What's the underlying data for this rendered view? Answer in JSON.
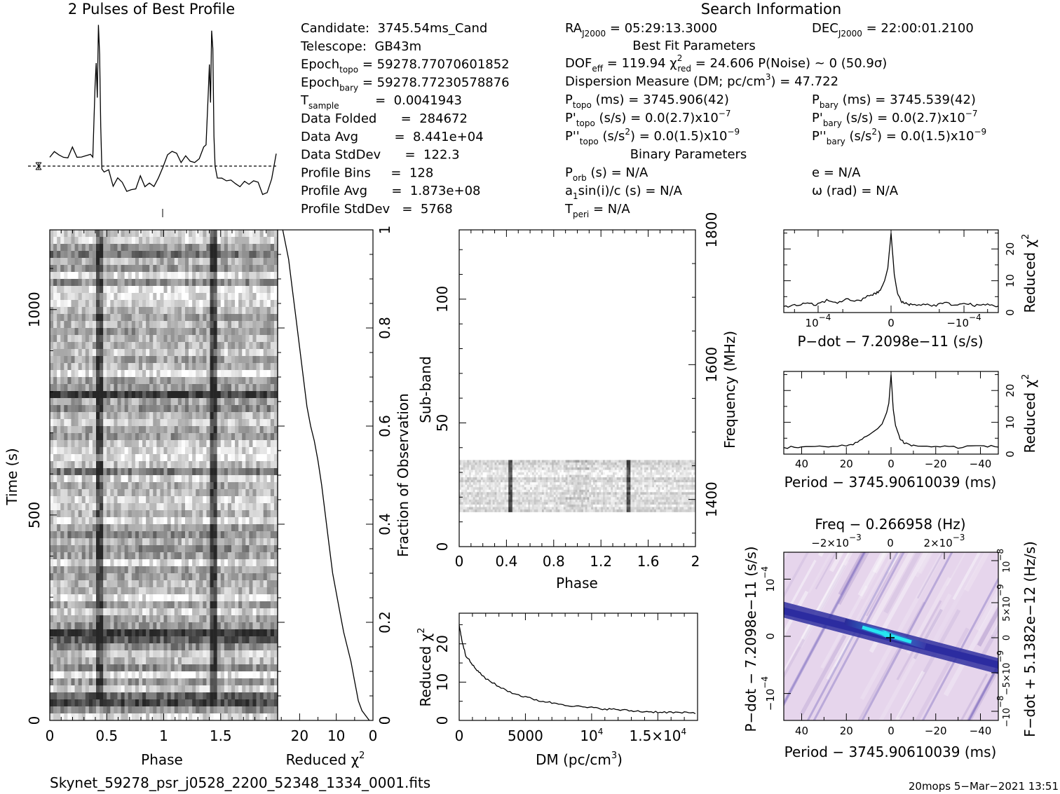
{
  "title_profile": "2 Pulses of Best Profile",
  "title_search": "Search Information",
  "info": {
    "left": [
      [
        "Candidate:  3745.54ms_Cand",
        ""
      ],
      [
        "Telescope:  GB43m",
        ""
      ],
      [
        "Epoch",
        "topo",
        " = 59278.77070601852"
      ],
      [
        "Epoch",
        "bary",
        " = 59278.77230578876"
      ],
      [
        "T",
        "sample",
        "         =  0.0041943"
      ],
      [
        "Data Folded      =  284672",
        "",
        ""
      ],
      [
        "Data Avg         =  8.441e+04",
        "",
        ""
      ],
      [
        "Data StdDev      =  122.3",
        "",
        ""
      ],
      [
        "Profile Bins     =  128",
        "",
        ""
      ],
      [
        "Profile Avg      =  1.873e+08",
        "",
        ""
      ],
      [
        "Profile StdDev   =  5768",
        "",
        ""
      ]
    ],
    "ra": "RA",
    "ra_sub": "J2000",
    "ra_val": " = 05:29:13.3000",
    "dec": "DEC",
    "dec_sub": "J2000",
    "dec_val": " = 22:00:01.2100",
    "best_fit": "Best Fit Parameters",
    "dof": "DOF",
    "dof_sub": "eff",
    "dof_val": " = 119.94  ",
    "chi": "χ",
    "chi_sup": "2",
    "chi_sub": "red",
    "chi_val": " = 24.606  P(Noise) ~ 0   (50.9σ)",
    "dm_line": "Dispersion Measure (DM; pc/cm",
    "dm_sup": "3",
    "dm_val": ") = 47.722",
    "ptopo": "P",
    "ptopo_sub": "topo",
    "ptopo_val": " (ms) =  3745.906(42)",
    "pbary": "P",
    "pbary_sub": "bary",
    "pbary_val": " (ms) =  3745.539(42)",
    "pdtopo": "P'",
    "pdtopo_sub": "topo",
    "pdtopo_val": " (s/s) = 0.0(2.7)x10",
    "pdtopo_exp": "−7",
    "pdbary": "P'",
    "pdbary_sub": "bary",
    "pdbary_val": " (s/s) = 0.0(2.7)x10",
    "pdbary_exp": "−7",
    "pddtopo": "P''",
    "pddtopo_sub": "topo",
    "pddtopo_val": " (s/s",
    "pddtopo_sup": "2",
    "pddtopo_val2": ") = 0.0(1.5)x10",
    "pddtopo_exp": "−9",
    "pddbary": "P''",
    "pddbary_sub": "bary",
    "pddbary_val": " (s/s",
    "pddbary_sup": "2",
    "pddbary_val2": ") = 0.0(1.5)x10",
    "pddbary_exp": "−9",
    "binary": "Binary Parameters",
    "porb": "P",
    "porb_sub": "orb",
    "porb_val": " (s) = N/A",
    "e_val": "e = N/A",
    "a1_pre": "a",
    "a1_sub": "1",
    "a1_val": "sin(i)/c (s) = N/A",
    "omega_val": "ω (rad) = N/A",
    "tperi": "T",
    "tperi_sub": "peri",
    "tperi_val": " = N/A"
  },
  "footer": {
    "filename": "Skynet_59278_psr_j0528_2200_52348_1334_0001.fits",
    "stamp": "20mops  5−Mar−2021 13:51"
  },
  "chart_data": [
    {
      "name": "profile",
      "type": "line",
      "title": "2 Pulses of Best Profile",
      "x": [
        0,
        0.04,
        0.08,
        0.12,
        0.16,
        0.2,
        0.24,
        0.28,
        0.32,
        0.36,
        0.38,
        0.4,
        0.41,
        0.42,
        0.43,
        0.44,
        0.45,
        0.46,
        0.48,
        0.52,
        0.56,
        0.6,
        0.64,
        0.68,
        0.72,
        0.76,
        0.8,
        0.84,
        0.88,
        0.92,
        0.96,
        1.0,
        1.04,
        1.08,
        1.12,
        1.16,
        1.2,
        1.24,
        1.28,
        1.32,
        1.36,
        1.38,
        1.4,
        1.41,
        1.42,
        1.43,
        1.44,
        1.45,
        1.46,
        1.48,
        1.52,
        1.56,
        1.6,
        1.64,
        1.68,
        1.72,
        1.76,
        1.8,
        1.84,
        1.88,
        1.92,
        1.96,
        2.0
      ],
      "y": [
        0.3,
        0.4,
        0.5,
        0.3,
        0.2,
        0.35,
        0.3,
        0.2,
        0.25,
        0.4,
        0.5,
        2.5,
        3.5,
        2.2,
        4.6,
        3.8,
        1.2,
        0.0,
        -0.2,
        -0.3,
        -0.5,
        -0.4,
        -0.6,
        -0.7,
        -0.8,
        -0.6,
        -0.5,
        -0.7,
        -0.8,
        -0.9,
        -0.4,
        0.2,
        0.4,
        0.5,
        0.3,
        0.2,
        0.35,
        0.3,
        0.2,
        0.25,
        0.4,
        0.5,
        2.5,
        3.5,
        2.2,
        4.6,
        3.8,
        1.2,
        0.0,
        -0.2,
        -0.3,
        -0.5,
        -0.4,
        -0.6,
        -0.7,
        -0.8,
        -0.6,
        -0.5,
        -0.7,
        -0.8,
        -0.9,
        -0.4,
        0.2
      ]
    },
    {
      "name": "time-phase",
      "type": "heatmap",
      "xlabel": "Phase",
      "ylabel": "Time (s)",
      "xticks": [
        "0",
        "0.5",
        "1",
        "1.5"
      ],
      "yticks": [
        "0",
        "500",
        "1000"
      ],
      "xlim": [
        0,
        2
      ],
      "ylim": [
        0,
        1194
      ],
      "pulse_phases": [
        0.43,
        1.43
      ],
      "dark_rows_s": [
        50,
        200,
        210,
        600,
        800,
        1140
      ]
    },
    {
      "name": "time-chi2",
      "type": "line",
      "xlabel": "Reduced χ",
      "xlabel_sup": "2",
      "ylabel": "Fraction of Observation",
      "xticks": [
        "20",
        "10",
        "0"
      ],
      "yticks": [
        "0",
        "0.2",
        "0.4",
        "0.6",
        "0.8",
        "1"
      ],
      "x": [
        1,
        2,
        3,
        4,
        4.5,
        5,
        6,
        7,
        8,
        9,
        10,
        11,
        12,
        13,
        14,
        15,
        16,
        17,
        18,
        19,
        20,
        21,
        22,
        23,
        24.6
      ],
      "y": [
        0,
        0.01,
        0.02,
        0.04,
        0.06,
        0.08,
        0.12,
        0.15,
        0.18,
        0.22,
        0.26,
        0.3,
        0.36,
        0.42,
        0.48,
        0.53,
        0.57,
        0.6,
        0.64,
        0.7,
        0.76,
        0.82,
        0.88,
        0.94,
        1.0
      ]
    },
    {
      "name": "subband-phase",
      "type": "heatmap",
      "xlabel": "Phase",
      "ylabel": "Sub-band",
      "y2label": "Frequency (MHz)",
      "xticks": [
        "0",
        "0.4",
        "0.8",
        "1.2",
        "1.6",
        "2"
      ],
      "yticks": [
        "0",
        "50",
        "100"
      ],
      "y2ticks": [
        "1400",
        "1600",
        "1800"
      ],
      "xlim": [
        0,
        2
      ],
      "ylim": [
        0,
        128
      ],
      "active_subbands": [
        14,
        35
      ],
      "pulse_phases": [
        0.43,
        1.43
      ]
    },
    {
      "name": "dm-chi2",
      "type": "line",
      "xlabel": "DM (pc/cm",
      "xlabel_sup": "3",
      "xlabel_end": ")",
      "ylabel": "Reduced χ",
      "ylabel_sup": "2",
      "xticks": [
        "0",
        "5000",
        "10",
        "1.5×10"
      ],
      "xtick_exp": [
        "",
        "",
        "4",
        "4"
      ],
      "yticks": [
        "0",
        "10",
        "20"
      ],
      "xlim": [
        0,
        18000
      ],
      "ylim": [
        0,
        28
      ],
      "x": [
        0,
        200,
        500,
        1000,
        1500,
        2000,
        3000,
        4000,
        5000,
        6000,
        7000,
        8000,
        9000,
        10000,
        11000,
        12000,
        13000,
        14000,
        15000,
        16000,
        17000,
        18000
      ],
      "y": [
        25,
        21,
        17,
        14.5,
        12.5,
        11,
        8.8,
        7.2,
        6.1,
        5.2,
        4.6,
        4.1,
        3.6,
        3.3,
        3.0,
        2.8,
        2.5,
        2.3,
        2.2,
        2.1,
        2.0,
        1.9
      ]
    },
    {
      "name": "pdot-chi2",
      "type": "line",
      "xlabel": "P−dot − 7.2098e−11 (s/s)",
      "ylabel": "Reduced χ",
      "ylabel_sup": "2",
      "xticks": [
        "10",
        "0",
        "−10"
      ],
      "xtick_exp": [
        "−4",
        "",
        "−4"
      ],
      "yticks": [
        "0",
        "10",
        "20"
      ],
      "xlim": [
        -1,
        1
      ],
      "ylim": [
        0,
        26
      ],
      "x": [
        -1,
        -0.9,
        -0.8,
        -0.7,
        -0.6,
        -0.5,
        -0.4,
        -0.3,
        -0.2,
        -0.15,
        -0.1,
        -0.06,
        -0.03,
        0,
        0.03,
        0.06,
        0.1,
        0.15,
        0.2,
        0.3,
        0.4,
        0.5,
        0.6,
        0.7,
        0.8,
        0.9,
        1
      ],
      "y": [
        2,
        2.2,
        2.8,
        2.4,
        3.8,
        3.2,
        4.2,
        3.5,
        5.5,
        5.8,
        7,
        10,
        14,
        25,
        12,
        6,
        3.2,
        2.8,
        2.4,
        2.6,
        2.2,
        3,
        2.4,
        2.8,
        2.2,
        2.5,
        2
      ]
    },
    {
      "name": "period-chi2",
      "type": "line",
      "xlabel": "Period − 3745.90610039 (ms)",
      "ylabel": "Reduced χ",
      "ylabel_sup": "2",
      "xticks": [
        "40",
        "20",
        "0",
        "−20",
        "−40"
      ],
      "yticks": [
        "0",
        "10",
        "20"
      ],
      "xlim": [
        48,
        -48
      ],
      "ylim": [
        0,
        26
      ],
      "x": [
        48,
        40,
        30,
        20,
        15,
        10,
        6,
        4,
        2,
        1,
        0,
        -1,
        -2,
        -4,
        -6,
        -10,
        -20,
        -30,
        -40,
        -48
      ],
      "y": [
        2,
        2.4,
        2.2,
        2.6,
        3.8,
        6,
        8,
        9.5,
        13,
        16,
        25,
        14,
        9,
        5,
        3.5,
        2.6,
        2.4,
        2.2,
        2.6,
        2.2
      ]
    },
    {
      "name": "p-pdot",
      "type": "heatmap",
      "title": "Freq − 0.266958 (Hz)",
      "xlabel": "Period − 3745.90610039 (ms)",
      "ylabel": "P−dot − 7.2098e−11 (s/s)",
      "y2label": "F−dot + 5.1382e−12 (Hz/s)",
      "xticks": [
        "40",
        "20",
        "0",
        "−20",
        "−40"
      ],
      "x2ticks": [
        "−2×10",
        "0",
        "2×10"
      ],
      "x2tick_exp": [
        "−3",
        "",
        "−3"
      ],
      "yticks": [
        "10",
        "0",
        "−10"
      ],
      "ytick_exp": [
        "−4",
        "",
        "−4"
      ],
      "y2ticks": [
        "−10",
        "−5×10",
        "0",
        "5×10",
        "10"
      ],
      "y2tick_exp": [
        "−8",
        "−9",
        "",
        "−9",
        "−8"
      ],
      "xlim": [
        48,
        -48
      ],
      "ylim": [
        -1,
        1
      ],
      "peak": [
        0,
        0
      ]
    }
  ]
}
